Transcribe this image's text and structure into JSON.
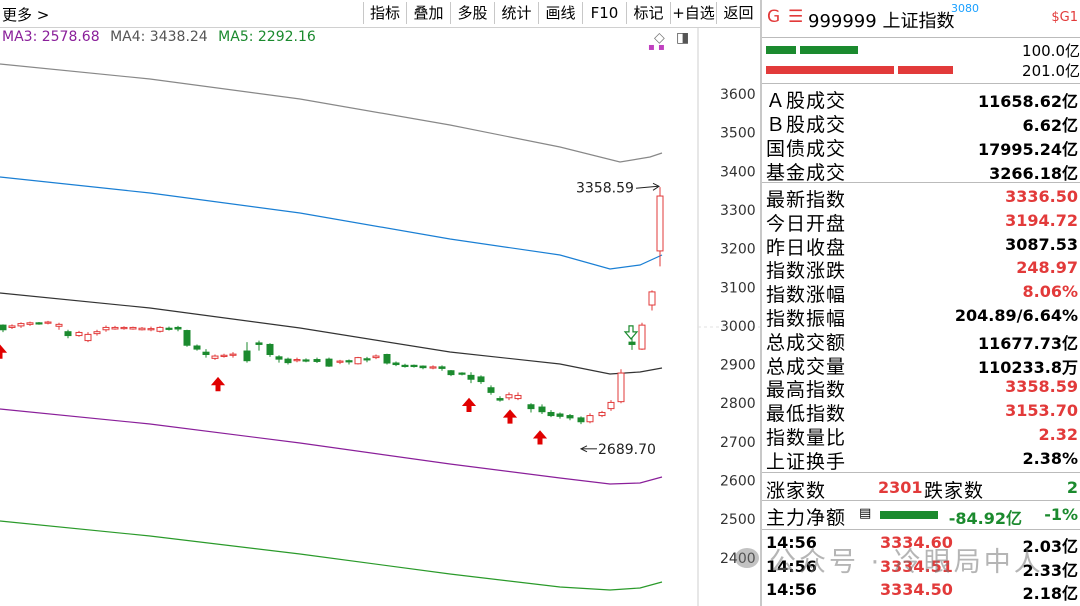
{
  "toolbar": {
    "more": "更多 >",
    "buttons": [
      "指标",
      "叠加",
      "多股",
      "统计",
      "画线",
      "F10",
      "标记",
      "+自选",
      "返回"
    ]
  },
  "ma_legend": {
    "ma3": "MA3: 2578.68",
    "ma4": "MA4: 3438.24",
    "ma5": "MA5: 2292.16"
  },
  "chart_data": {
    "type": "candlestick",
    "y_ticks": [
      3600,
      3500,
      3400,
      3300,
      3200,
      3100,
      3000,
      2900,
      2800,
      2700,
      2600,
      2500,
      2400
    ],
    "annotations": [
      {
        "text": "3358.59",
        "value": 3358.59
      },
      {
        "text": "2689.70",
        "value": 2689.7
      }
    ],
    "colors": {
      "up": "#e23a3a",
      "down": "#1b8a2e",
      "band_upper": "#888888",
      "band_mid_upper": "#1a7fd4",
      "band_mid": "#333333",
      "band_lower": "#8a1f9a",
      "band_bottom": "#2a9a2a"
    }
  },
  "panel": {
    "code": "999999",
    "name": "上证指数",
    "superscript": "3080",
    "g": "G",
    "eq": "☰",
    "tag": "$G1",
    "bar_top_value": "100.0亿",
    "bar_bottom_value": "201.0亿",
    "turnover": [
      {
        "label": "Ａ股成交",
        "value": "11658.62亿"
      },
      {
        "label": "Ｂ股成交",
        "value": "6.62亿"
      },
      {
        "label": "国债成交",
        "value": "17995.24亿"
      },
      {
        "label": "基金成交",
        "value": "3266.18亿"
      }
    ],
    "quote": [
      {
        "label": "最新指数",
        "value": "3336.50",
        "color": "red"
      },
      {
        "label": "今日开盘",
        "value": "3194.72",
        "color": "red"
      },
      {
        "label": "昨日收盘",
        "value": "3087.53",
        "color": "black"
      },
      {
        "label": "指数涨跌",
        "value": "248.97",
        "color": "red"
      },
      {
        "label": "指数涨幅",
        "value": "8.06%",
        "color": "red"
      },
      {
        "label": "指数振幅",
        "value": "204.89/6.64%",
        "color": "black"
      },
      {
        "label": "总成交额",
        "value": "11677.73亿",
        "color": "black"
      },
      {
        "label": "总成交量",
        "value": "110233.8万",
        "color": "black"
      },
      {
        "label": "最高指数",
        "value": "3358.59",
        "color": "red"
      },
      {
        "label": "最低指数",
        "value": "3153.70",
        "color": "red"
      },
      {
        "label": "指数量比",
        "value": "2.32",
        "color": "red"
      },
      {
        "label": "上证换手",
        "value": "2.38%",
        "color": "black"
      }
    ],
    "breadth": {
      "up_label": "涨家数",
      "up_value": "2301",
      "down_label": "跌家数",
      "down_value": "2"
    },
    "main_flow": {
      "label": "主力净额",
      "value": "-84.92亿",
      "pct": "-1%"
    },
    "ticks": [
      {
        "time": "14:56",
        "price": "3334.60",
        "vol": "2.03亿"
      },
      {
        "time": "14:56",
        "price": "3334.51",
        "vol": "2.33亿"
      },
      {
        "time": "14:56",
        "price": "3334.50",
        "vol": "2.18亿"
      }
    ]
  },
  "watermark": "公众号 · 冷眼局中人"
}
